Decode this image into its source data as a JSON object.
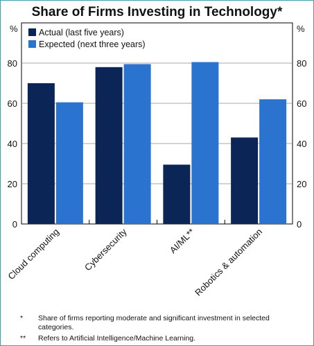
{
  "chart_data": {
    "type": "bar",
    "title": "Share of Firms Investing in Technology*",
    "ylabel_left": "%",
    "ylabel_right": "%",
    "ylim": [
      0,
      100
    ],
    "yticks": [
      0,
      20,
      40,
      60,
      80
    ],
    "grid": true,
    "legend_position": "top-left",
    "categories": [
      "Cloud computing",
      "Cybersecurity",
      "AI/ML**",
      "Robotics & automation"
    ],
    "series": [
      {
        "name": "Actual (last five years)",
        "color": "#0b2656",
        "values": [
          70,
          78,
          29.5,
          43
        ]
      },
      {
        "name": "Expected (next three years)",
        "color": "#2a74d0",
        "values": [
          60.5,
          79.5,
          80.5,
          62
        ]
      }
    ]
  },
  "footnotes": [
    {
      "mark": "*",
      "text": "Share of firms reporting moderate and significant investment in selected categories."
    },
    {
      "mark": "**",
      "text": "Refers to Artificial Intelligence/Machine Learning."
    }
  ]
}
